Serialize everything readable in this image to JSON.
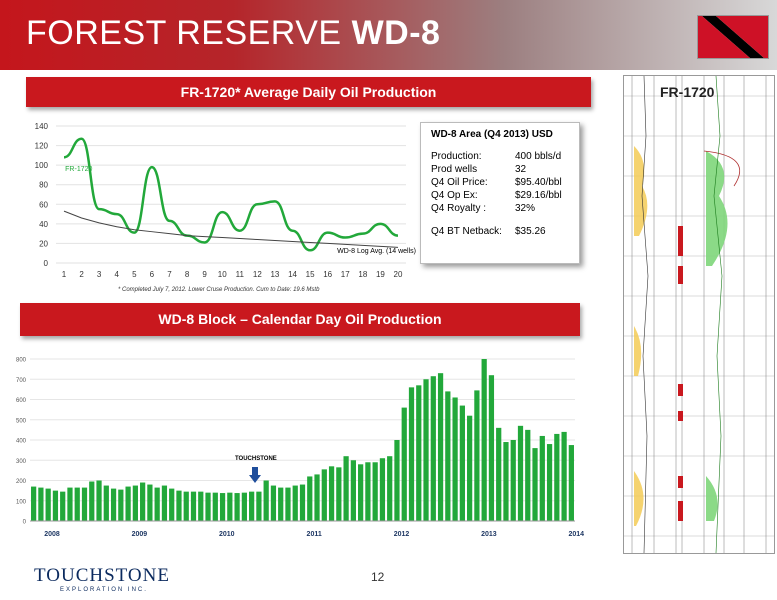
{
  "header": {
    "title_light": "FOREST RESERVE ",
    "title_bold": "WD-8"
  },
  "banner1": "FR-1720* Average Daily Oil Production",
  "banner2": "WD-8 Block – Calendar Day Oil Production",
  "info_box": {
    "title": "WD-8 Area (Q4 2013) USD",
    "rows": [
      {
        "label": "Production:",
        "value": "400 bbls/d"
      },
      {
        "label": "Prod wells",
        "value": "32"
      },
      {
        "label": "Q4 Oil Price:",
        "value": "$95.40/bbl"
      },
      {
        "label": "Q4 Op Ex:",
        "value": "$29.16/bbl"
      },
      {
        "label": "Q4 Royalty :",
        "value": "32%"
      }
    ],
    "netback": {
      "label": "Q4 BT Netback:",
      "value": "$35.26"
    }
  },
  "footnote": "* Completed July 7, 2012.  Lower Cruse Production.  Cum to Date: 19.6 Mstb",
  "log_title": "FR-1720",
  "page_number": "12",
  "logo": {
    "name": "TOUCHSTONE",
    "sub": "EXPLORATION INC."
  },
  "touchstone_marker": "TOUCHSTONE",
  "chart_data": [
    {
      "type": "line",
      "x": [
        1,
        2,
        3,
        4,
        5,
        6,
        7,
        8,
        9,
        10,
        11,
        12,
        13,
        14,
        15,
        16,
        17,
        18,
        19,
        20
      ],
      "ylim": [
        0,
        140
      ],
      "yticks": [
        0,
        20,
        40,
        60,
        80,
        100,
        120,
        140
      ],
      "series": [
        {
          "name": "FR-1720",
          "color": "#22a83a",
          "values": [
            108,
            127,
            55,
            50,
            31,
            98,
            43,
            28,
            21,
            52,
            33,
            60,
            63,
            33,
            13,
            31,
            26,
            30,
            40,
            28
          ]
        },
        {
          "name": "WD-8 Log Avg. (14 wells)",
          "color": "#444444",
          "values": [
            53,
            46,
            41,
            37,
            34,
            32,
            30,
            28,
            27,
            26,
            25,
            24,
            23,
            22,
            21,
            20,
            19,
            18,
            17,
            16
          ]
        }
      ]
    },
    {
      "type": "bar",
      "color": "#22a83a",
      "ylim": [
        0,
        800
      ],
      "yticks": [
        0,
        100,
        200,
        300,
        400,
        500,
        600,
        700,
        800
      ],
      "year_labels": [
        "2008",
        "2009",
        "2010",
        "2011",
        "2012",
        "2013",
        "2014"
      ],
      "values": [
        170,
        165,
        160,
        150,
        145,
        165,
        165,
        165,
        195,
        200,
        175,
        160,
        155,
        170,
        175,
        190,
        180,
        165,
        175,
        160,
        150,
        145,
        145,
        145,
        140,
        140,
        138,
        140,
        138,
        140,
        145,
        145,
        200,
        175,
        165,
        165,
        175,
        180,
        220,
        230,
        255,
        270,
        265,
        320,
        300,
        280,
        290,
        290,
        310,
        320,
        400,
        560,
        660,
        670,
        700,
        715,
        730,
        640,
        610,
        570,
        520,
        645,
        800,
        720,
        460,
        390,
        400,
        470,
        450,
        360,
        420,
        380,
        430,
        440,
        375
      ]
    }
  ]
}
